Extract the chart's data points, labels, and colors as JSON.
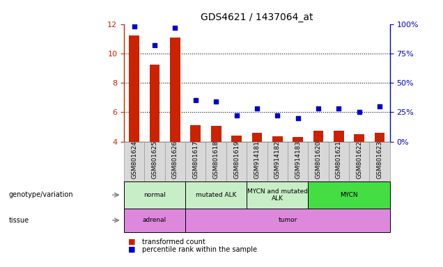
{
  "title": "GDS4621 / 1437064_at",
  "samples": [
    "GSM801624",
    "GSM801625",
    "GSM801626",
    "GSM801617",
    "GSM801618",
    "GSM801619",
    "GSM914181",
    "GSM914182",
    "GSM914183",
    "GSM801620",
    "GSM801621",
    "GSM801622",
    "GSM801623"
  ],
  "transformed_count": [
    11.2,
    9.25,
    11.1,
    5.1,
    5.05,
    4.4,
    4.6,
    4.35,
    4.3,
    4.75,
    4.75,
    4.5,
    4.6
  ],
  "percentile_rank": [
    98,
    82,
    97,
    35,
    34,
    22,
    28,
    22,
    20,
    28,
    28,
    25,
    30
  ],
  "ylim_left": [
    4,
    12
  ],
  "ylim_right": [
    0,
    100
  ],
  "yticks_left": [
    4,
    6,
    8,
    10,
    12
  ],
  "yticks_right": [
    0,
    25,
    50,
    75,
    100
  ],
  "bar_color": "#cc2200",
  "scatter_color": "#0000cc",
  "geno_segments": [
    {
      "label": "normal",
      "xstart": 0,
      "xend": 3,
      "color": "#c8eec8"
    },
    {
      "label": "mutated ALK",
      "xstart": 3,
      "xend": 6,
      "color": "#c8eec8"
    },
    {
      "label": "MYCN and mutated\nALK",
      "xstart": 6,
      "xend": 9,
      "color": "#c8eec8"
    },
    {
      "label": "MYCN",
      "xstart": 9,
      "xend": 13,
      "color": "#44dd44"
    }
  ],
  "tissue_segments": [
    {
      "label": "adrenal",
      "xstart": 0,
      "xend": 3,
      "color": "#dd88dd"
    },
    {
      "label": "tumor",
      "xstart": 3,
      "xend": 13,
      "color": "#dd88dd"
    }
  ],
  "legend_items": [
    {
      "color": "#cc2200",
      "label": "transformed count"
    },
    {
      "color": "#0000cc",
      "label": "percentile rank within the sample"
    }
  ],
  "genotype_label": "genotype/variation",
  "tissue_label": "tissue",
  "ytick_label_fontsize": 8,
  "xtick_label_fontsize": 6.5,
  "title_fontsize": 10
}
